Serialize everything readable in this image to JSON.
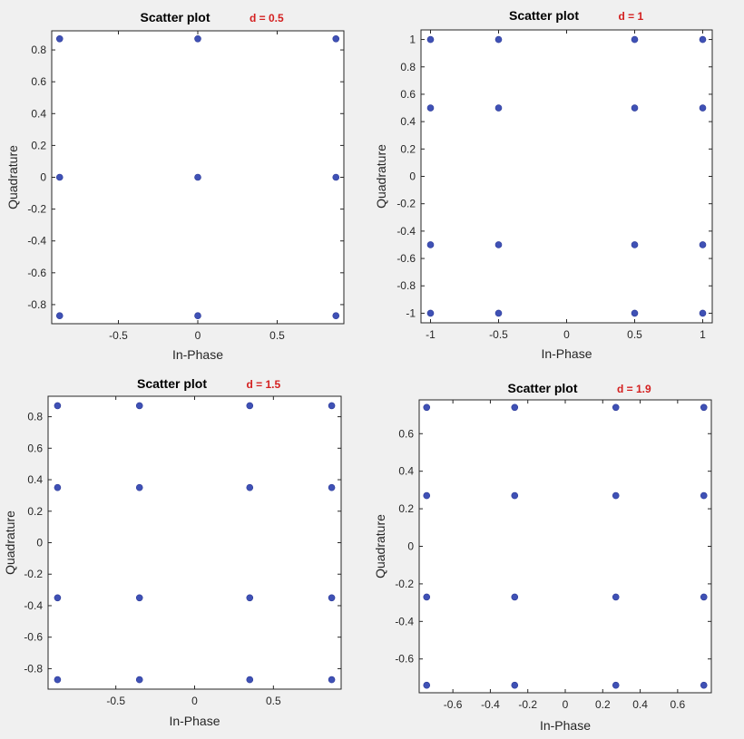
{
  "chart_data": [
    {
      "type": "scatter",
      "title": "Scatter plot",
      "annotation": "d = 0.5",
      "xlabel": "In-Phase",
      "ylabel": "Quadrature",
      "xlim": [
        -0.92,
        0.92
      ],
      "ylim": [
        -0.92,
        0.92
      ],
      "xticks": [
        -0.5,
        0,
        0.5
      ],
      "xtick_labels": [
        "-0.5",
        "0",
        "0.5"
      ],
      "yticks": [
        -0.8,
        -0.6,
        -0.4,
        -0.2,
        0,
        0.2,
        0.4,
        0.6,
        0.8
      ],
      "ytick_labels": [
        "-0.8",
        "-0.6",
        "-0.4",
        "-0.2",
        "0",
        "0.2",
        "0.4",
        "0.6",
        "0.8"
      ],
      "grid": false,
      "marker_color": "#3f51b5",
      "points": [
        [
          -0.87,
          0.87
        ],
        [
          0.0,
          0.87
        ],
        [
          0.87,
          0.87
        ],
        [
          -0.87,
          0.0
        ],
        [
          0.0,
          0.0
        ],
        [
          0.87,
          0.0
        ],
        [
          -0.87,
          -0.87
        ],
        [
          0.0,
          -0.87
        ],
        [
          0.87,
          -0.87
        ]
      ]
    },
    {
      "type": "scatter",
      "title": "Scatter plot",
      "annotation": "d = 1",
      "xlabel": "In-Phase",
      "ylabel": "Quadrature",
      "xlim": [
        -1.07,
        1.07
      ],
      "ylim": [
        -1.07,
        1.07
      ],
      "xticks": [
        -1,
        -0.5,
        0,
        0.5,
        1
      ],
      "xtick_labels": [
        "-1",
        "-0.5",
        "0",
        "0.5",
        "1"
      ],
      "yticks": [
        -1,
        -0.8,
        -0.6,
        -0.4,
        -0.2,
        0,
        0.2,
        0.4,
        0.6,
        0.8,
        1
      ],
      "ytick_labels": [
        "-1",
        "-0.8",
        "-0.6",
        "-0.4",
        "-0.2",
        "0",
        "0.2",
        "0.4",
        "0.6",
        "0.8",
        "1"
      ],
      "grid": false,
      "marker_color": "#3f51b5",
      "points": [
        [
          -1.0,
          1.0
        ],
        [
          -0.5,
          1.0
        ],
        [
          0.5,
          1.0
        ],
        [
          1.0,
          1.0
        ],
        [
          -1.0,
          0.5
        ],
        [
          -0.5,
          0.5
        ],
        [
          0.5,
          0.5
        ],
        [
          1.0,
          0.5
        ],
        [
          -1.0,
          -0.5
        ],
        [
          -0.5,
          -0.5
        ],
        [
          0.5,
          -0.5
        ],
        [
          1.0,
          -0.5
        ],
        [
          -1.0,
          -1.0
        ],
        [
          -0.5,
          -1.0
        ],
        [
          0.5,
          -1.0
        ],
        [
          1.0,
          -1.0
        ]
      ]
    },
    {
      "type": "scatter",
      "title": "Scatter plot",
      "annotation": "d = 1.5",
      "xlabel": "In-Phase",
      "ylabel": "Quadrature",
      "xlim": [
        -0.93,
        0.93
      ],
      "ylim": [
        -0.93,
        0.93
      ],
      "xticks": [
        -0.5,
        0,
        0.5
      ],
      "xtick_labels": [
        "-0.5",
        "0",
        "0.5"
      ],
      "yticks": [
        -0.8,
        -0.6,
        -0.4,
        -0.2,
        0,
        0.2,
        0.4,
        0.6,
        0.8
      ],
      "ytick_labels": [
        "-0.8",
        "-0.6",
        "-0.4",
        "-0.2",
        "0",
        "0.2",
        "0.4",
        "0.6",
        "0.8"
      ],
      "grid": false,
      "marker_color": "#3f51b5",
      "points": [
        [
          -0.87,
          0.87
        ],
        [
          -0.35,
          0.87
        ],
        [
          0.35,
          0.87
        ],
        [
          0.87,
          0.87
        ],
        [
          -0.87,
          0.35
        ],
        [
          -0.35,
          0.35
        ],
        [
          0.35,
          0.35
        ],
        [
          0.87,
          0.35
        ],
        [
          -0.87,
          -0.35
        ],
        [
          -0.35,
          -0.35
        ],
        [
          0.35,
          -0.35
        ],
        [
          0.87,
          -0.35
        ],
        [
          -0.87,
          -0.87
        ],
        [
          -0.35,
          -0.87
        ],
        [
          0.35,
          -0.87
        ],
        [
          0.87,
          -0.87
        ]
      ]
    },
    {
      "type": "scatter",
      "title": "Scatter plot",
      "annotation": "d = 1.9",
      "xlabel": "In-Phase",
      "ylabel": "Quadrature",
      "xlim": [
        -0.78,
        0.78
      ],
      "ylim": [
        -0.78,
        0.78
      ],
      "xticks": [
        -0.6,
        -0.4,
        -0.2,
        0,
        0.2,
        0.4,
        0.6
      ],
      "xtick_labels": [
        "-0.6",
        "-0.4",
        "-0.2",
        "0",
        "0.2",
        "0.4",
        "0.6"
      ],
      "yticks": [
        -0.6,
        -0.4,
        -0.2,
        0,
        0.2,
        0.4,
        0.6
      ],
      "ytick_labels": [
        "-0.6",
        "-0.4",
        "-0.2",
        "0",
        "0.2",
        "0.4",
        "0.6"
      ],
      "grid": false,
      "marker_color": "#3f51b5",
      "points": [
        [
          -0.74,
          0.74
        ],
        [
          -0.27,
          0.74
        ],
        [
          0.27,
          0.74
        ],
        [
          0.74,
          0.74
        ],
        [
          -0.74,
          0.27
        ],
        [
          -0.27,
          0.27
        ],
        [
          0.27,
          0.27
        ],
        [
          0.74,
          0.27
        ],
        [
          -0.74,
          -0.27
        ],
        [
          -0.27,
          -0.27
        ],
        [
          0.27,
          -0.27
        ],
        [
          0.74,
          -0.27
        ],
        [
          -0.74,
          -0.74
        ],
        [
          -0.27,
          -0.74
        ],
        [
          0.27,
          -0.74
        ],
        [
          0.74,
          -0.74
        ]
      ]
    }
  ]
}
